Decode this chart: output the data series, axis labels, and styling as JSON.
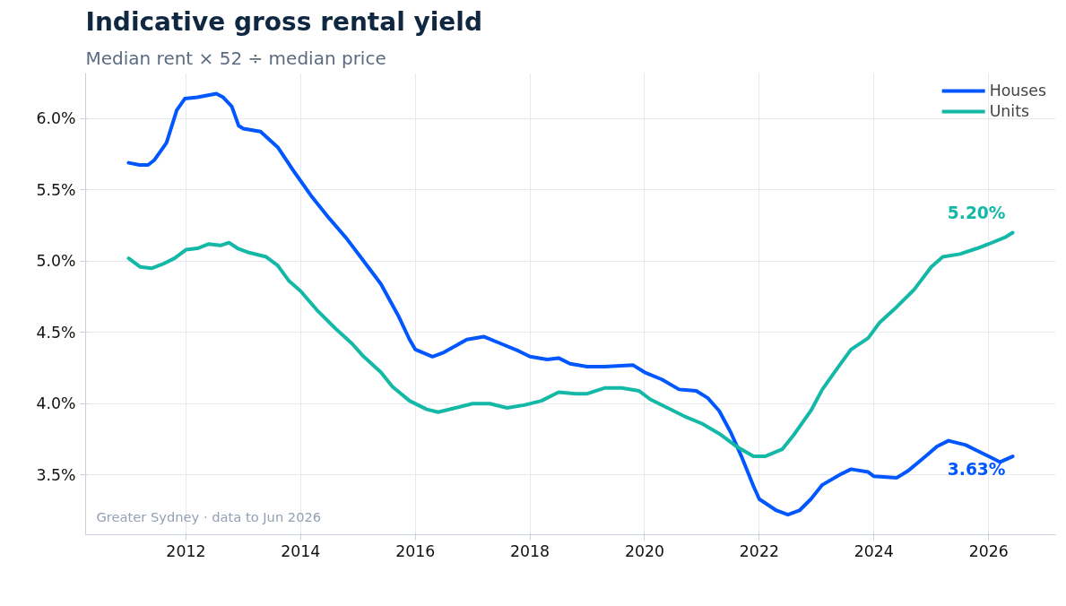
{
  "chart_data": {
    "type": "line",
    "title": "Indicative gross rental yield",
    "subtitle": "Median rent × 52 ÷ median price",
    "series": [
      {
        "name": "Houses",
        "color": "#0057ff",
        "x": [
          2011.0,
          2011.19,
          2011.34,
          2011.45,
          2011.66,
          2011.84,
          2011.98,
          2012.2,
          2012.53,
          2012.65,
          2012.8,
          2012.92,
          2013.0,
          2013.3,
          2013.6,
          2013.9,
          2014.2,
          2014.5,
          2014.8,
          2015.1,
          2015.4,
          2015.7,
          2015.9,
          2016.0,
          2016.3,
          2016.5,
          2016.9,
          2017.2,
          2017.5,
          2017.8,
          2018.0,
          2018.3,
          2018.5,
          2018.7,
          2019.0,
          2019.3,
          2019.8,
          2020.0,
          2020.3,
          2020.6,
          2020.9,
          2021.1,
          2021.3,
          2021.5,
          2021.7,
          2021.9,
          2022.0,
          2022.3,
          2022.5,
          2022.7,
          2022.9,
          2023.1,
          2023.4,
          2023.6,
          2023.9,
          2024.0,
          2024.4,
          2024.6,
          2024.9,
          2025.1,
          2025.3,
          2025.6,
          2025.8,
          2026.0,
          2026.2,
          2026.42
        ],
        "values": [
          5.69,
          5.675,
          5.675,
          5.71,
          5.83,
          6.06,
          6.14,
          6.15,
          6.175,
          6.15,
          6.085,
          5.95,
          5.93,
          5.91,
          5.8,
          5.62,
          5.45,
          5.3,
          5.16,
          5.0,
          4.84,
          4.62,
          4.45,
          4.38,
          4.33,
          4.36,
          4.45,
          4.47,
          4.42,
          4.37,
          4.33,
          4.31,
          4.32,
          4.28,
          4.26,
          4.26,
          4.27,
          4.22,
          4.17,
          4.1,
          4.09,
          4.04,
          3.95,
          3.8,
          3.62,
          3.42,
          3.33,
          3.25,
          3.22,
          3.25,
          3.33,
          3.43,
          3.5,
          3.54,
          3.52,
          3.49,
          3.48,
          3.53,
          3.63,
          3.7,
          3.74,
          3.71,
          3.67,
          3.63,
          3.59,
          3.63
        ]
      },
      {
        "name": "Units",
        "color": "#14b8a6",
        "x": [
          2011.0,
          2011.2,
          2011.4,
          2011.6,
          2011.8,
          2012.0,
          2012.2,
          2012.4,
          2012.6,
          2012.75,
          2012.9,
          2013.1,
          2013.4,
          2013.6,
          2013.8,
          2014.0,
          2014.3,
          2014.6,
          2014.9,
          2015.1,
          2015.4,
          2015.6,
          2015.9,
          2016.2,
          2016.4,
          2016.7,
          2017.0,
          2017.3,
          2017.6,
          2017.9,
          2018.2,
          2018.5,
          2018.8,
          2019.0,
          2019.3,
          2019.6,
          2019.9,
          2020.1,
          2020.4,
          2020.7,
          2021.0,
          2021.3,
          2021.6,
          2021.9,
          2022.1,
          2022.4,
          2022.6,
          2022.9,
          2023.1,
          2023.4,
          2023.6,
          2023.9,
          2024.1,
          2024.4,
          2024.7,
          2025.0,
          2025.2,
          2025.5,
          2025.8,
          2026.0,
          2026.3,
          2026.42
        ],
        "values": [
          5.02,
          4.96,
          4.95,
          4.98,
          5.02,
          5.08,
          5.09,
          5.12,
          5.11,
          5.13,
          5.09,
          5.06,
          5.03,
          4.97,
          4.86,
          4.79,
          4.65,
          4.53,
          4.42,
          4.33,
          4.22,
          4.12,
          4.02,
          3.96,
          3.94,
          3.97,
          4.0,
          4.0,
          3.97,
          3.99,
          4.02,
          4.08,
          4.07,
          4.07,
          4.11,
          4.11,
          4.09,
          4.03,
          3.97,
          3.91,
          3.86,
          3.79,
          3.7,
          3.63,
          3.63,
          3.68,
          3.78,
          3.95,
          4.1,
          4.27,
          4.38,
          4.46,
          4.57,
          4.68,
          4.8,
          4.96,
          5.03,
          5.05,
          5.09,
          5.12,
          5.17,
          5.2
        ]
      }
    ],
    "xlim": [
      2010.25,
      2027.17
    ],
    "xticks": [
      2012,
      2014,
      2016,
      2018,
      2020,
      2022,
      2024,
      2026
    ],
    "ylim": [
      3.08,
      6.32
    ],
    "yticks": [
      {
        "value": 3.5,
        "label": "3.5%"
      },
      {
        "value": 4.0,
        "label": "4.0%"
      },
      {
        "value": 4.5,
        "label": "4.5%"
      },
      {
        "value": 5.0,
        "label": "5.0%"
      },
      {
        "value": 5.5,
        "label": "5.5%"
      },
      {
        "value": 6.0,
        "label": "6.0%"
      }
    ],
    "grid": true,
    "legend": "top right",
    "line_style": "solid",
    "marker": "none",
    "annotations": [
      {
        "text": "5.20%",
        "x": 2026.42,
        "y": 5.2
      },
      {
        "text": "3.63%",
        "x": 2026.42,
        "y": 3.63
      },
      "Greater Sydney  ·  data to Jun 2026"
    ]
  }
}
